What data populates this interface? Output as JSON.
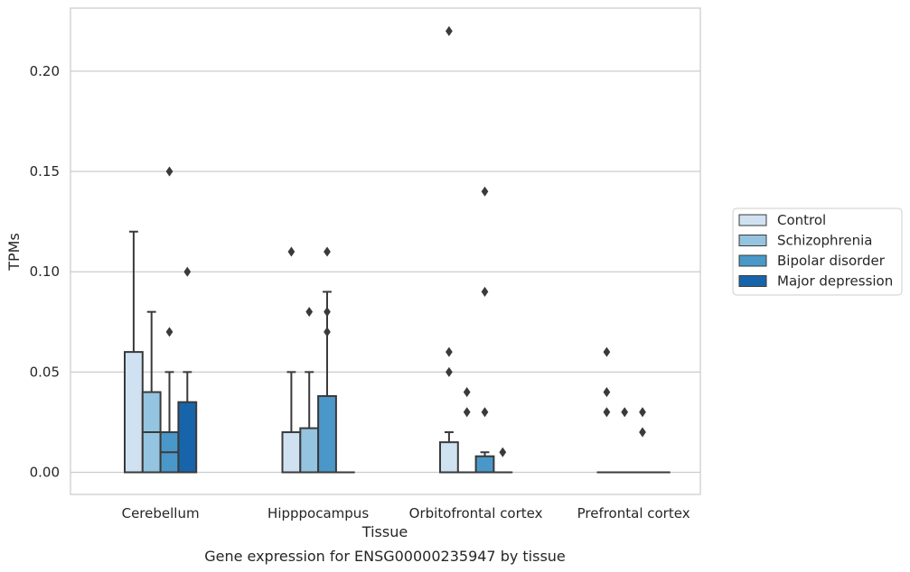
{
  "chart_data": {
    "type": "box",
    "caption": "Gene expression for ENSG00000235947 by tissue",
    "xlabel": "Tissue",
    "ylabel": "TPMs",
    "ylim": [
      -0.011,
      0.232
    ],
    "yticks": [
      0.0,
      0.05,
      0.1,
      0.15,
      0.2
    ],
    "ytick_labels": [
      "0.00",
      "0.05",
      "0.10",
      "0.15",
      "0.20"
    ],
    "grid": true,
    "legend_position": "right",
    "categories": [
      "Cerebellum",
      "Hipppocampus",
      "Orbitofrontal cortex",
      "Prefrontal cortex"
    ],
    "series": [
      {
        "name": "Control",
        "color": "#d0e1f2",
        "boxes": [
          {
            "q1": 0.0,
            "median": 0.0,
            "q3": 0.06,
            "whisker_low": 0.0,
            "whisker_high": 0.12,
            "outliers": []
          },
          {
            "q1": 0.0,
            "median": 0.0,
            "q3": 0.02,
            "whisker_low": 0.0,
            "whisker_high": 0.05,
            "outliers": [
              0.11
            ]
          },
          {
            "q1": 0.0,
            "median": 0.0,
            "q3": 0.015,
            "whisker_low": 0.0,
            "whisker_high": 0.02,
            "outliers": [
              0.22,
              0.06,
              0.05
            ]
          },
          {
            "q1": 0.0,
            "median": 0.0,
            "q3": 0.0,
            "whisker_low": 0.0,
            "whisker_high": 0.0,
            "outliers": [
              0.06,
              0.04,
              0.03
            ]
          }
        ]
      },
      {
        "name": "Schizophrenia",
        "color": "#94c4df",
        "boxes": [
          {
            "q1": 0.0,
            "median": 0.02,
            "q3": 0.04,
            "whisker_low": 0.0,
            "whisker_high": 0.08,
            "outliers": []
          },
          {
            "q1": 0.0,
            "median": 0.0,
            "q3": 0.022,
            "whisker_low": 0.0,
            "whisker_high": 0.05,
            "outliers": [
              0.08
            ]
          },
          {
            "q1": 0.0,
            "median": 0.0,
            "q3": 0.0,
            "whisker_low": 0.0,
            "whisker_high": 0.0,
            "outliers": [
              0.04,
              0.03
            ]
          },
          {
            "q1": 0.0,
            "median": 0.0,
            "q3": 0.0,
            "whisker_low": 0.0,
            "whisker_high": 0.0,
            "outliers": [
              0.03
            ]
          }
        ]
      },
      {
        "name": "Bipolar disorder",
        "color": "#4a98c9",
        "boxes": [
          {
            "q1": 0.0,
            "median": 0.01,
            "q3": 0.02,
            "whisker_low": 0.0,
            "whisker_high": 0.05,
            "outliers": [
              0.15,
              0.07
            ]
          },
          {
            "q1": 0.0,
            "median": 0.0,
            "q3": 0.038,
            "whisker_low": 0.0,
            "whisker_high": 0.09,
            "outliers": [
              0.11,
              0.08,
              0.07
            ]
          },
          {
            "q1": 0.0,
            "median": 0.0,
            "q3": 0.008,
            "whisker_low": 0.0,
            "whisker_high": 0.01,
            "outliers": [
              0.14,
              0.09,
              0.03
            ]
          },
          {
            "q1": 0.0,
            "median": 0.0,
            "q3": 0.0,
            "whisker_low": 0.0,
            "whisker_high": 0.0,
            "outliers": [
              0.03,
              0.02
            ]
          }
        ]
      },
      {
        "name": "Major depression",
        "color": "#1764ab",
        "boxes": [
          {
            "q1": 0.0,
            "median": 0.0,
            "q3": 0.035,
            "whisker_low": 0.0,
            "whisker_high": 0.05,
            "outliers": [
              0.1
            ]
          },
          {
            "q1": 0.0,
            "median": 0.0,
            "q3": 0.0,
            "whisker_low": 0.0,
            "whisker_high": 0.0,
            "outliers": []
          },
          {
            "q1": 0.0,
            "median": 0.0,
            "q3": 0.0,
            "whisker_low": 0.0,
            "whisker_high": 0.0,
            "outliers": [
              0.01
            ]
          },
          {
            "q1": 0.0,
            "median": 0.0,
            "q3": 0.0,
            "whisker_low": 0.0,
            "whisker_high": 0.0,
            "outliers": []
          }
        ]
      }
    ]
  }
}
